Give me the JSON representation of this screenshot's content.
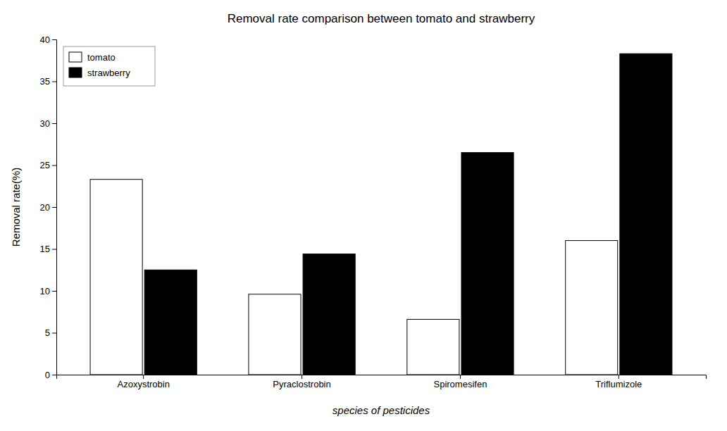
{
  "chart_data": {
    "type": "bar",
    "title": "Removal rate comparison between tomato and strawberry",
    "xlabel": "species of pesticides",
    "ylabel": "Removal rate(%)",
    "categories": [
      "Azoxystrobin",
      "Pyraclostrobin",
      "Spiromesifen",
      "Triflumizole"
    ],
    "series": [
      {
        "name": "tomato",
        "color": "#ffffff",
        "values": [
          23.3,
          9.6,
          6.6,
          16.0
        ]
      },
      {
        "name": "strawberry",
        "color": "#000000",
        "values": [
          12.5,
          14.4,
          26.5,
          38.3
        ]
      }
    ],
    "ylim": [
      0,
      40
    ],
    "yticks": [
      0,
      5,
      10,
      15,
      20,
      25,
      30,
      35,
      40
    ],
    "grid": false,
    "legend": "upper left"
  }
}
